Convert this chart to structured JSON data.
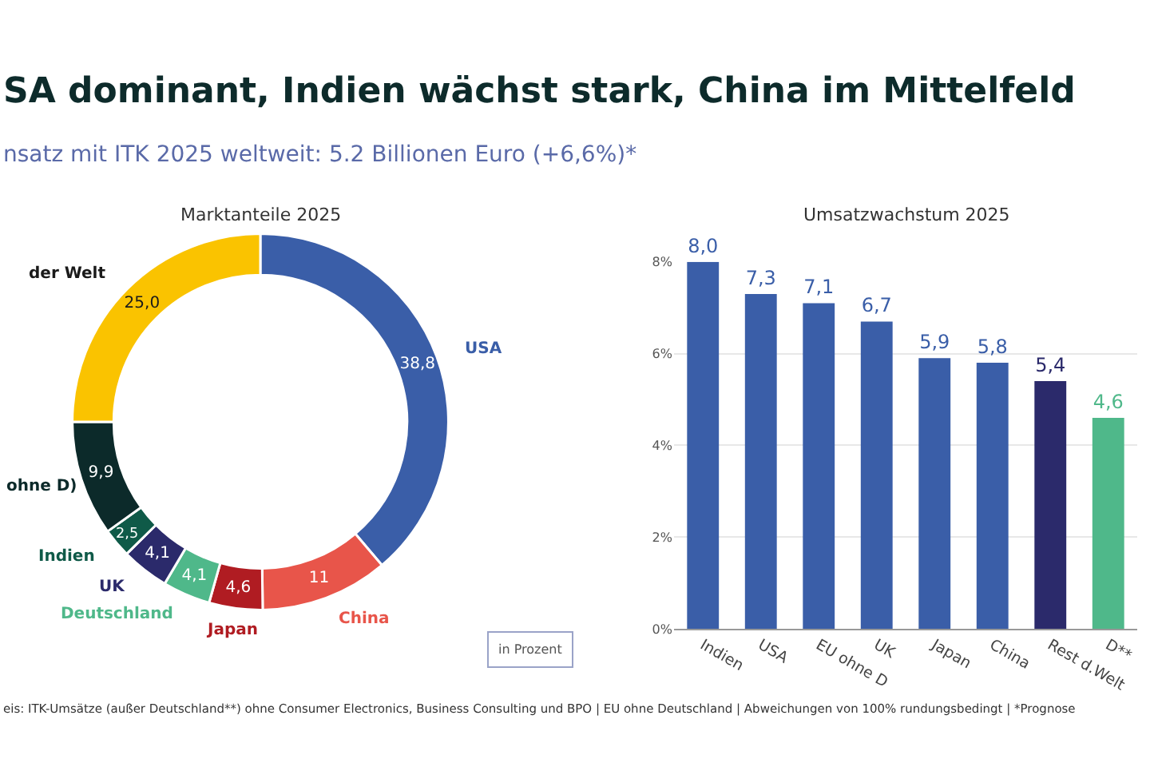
{
  "chart_data": [
    {
      "type": "other",
      "title": "SA dominant, Indien wächst stark, China im Mittelfeld",
      "subtitle": "nsatz mit ITK 2025 weltweit: 5.2 Billionen Euro (+6,6%)*",
      "annotations": [
        "eis: ITK-Umsätze (außer Deutschland**) ohne Consumer Electronics, Business Consulting und BPO | EU ohne Deutschland | Abweichungen von 100% rundungsbedingt | *Prognose"
      ]
    },
    {
      "type": "donut",
      "title": "Marktanteile 2025",
      "categories": [
        "USA",
        "China",
        "Japan",
        "Deutschland",
        "UK",
        "Indien",
        "ohne D)",
        "der Welt"
      ],
      "values": [
        38.8,
        11,
        4.6,
        4.1,
        4.1,
        2.5,
        9.9,
        25.0
      ],
      "value_labels": [
        "38,8",
        "11",
        "4,6",
        "4,1",
        "4,1",
        "2,5",
        "9,9",
        "25,0"
      ],
      "colors": [
        "#3a5ea8",
        "#e8554a",
        "#b01c22",
        "#4fb88a",
        "#2b2a6b",
        "#0f5a48",
        "#0c2a2a",
        "#fac300"
      ],
      "annotations": [
        "in Prozent"
      ]
    },
    {
      "type": "bar",
      "title": "Umsatzwachstum 2025",
      "categories": [
        "Indien",
        "USA",
        "EU ohne D",
        "UK",
        "Japan",
        "China",
        "Rest d.Welt",
        "D**"
      ],
      "values": [
        8.0,
        7.3,
        7.1,
        6.7,
        5.9,
        5.8,
        5.4,
        4.6
      ],
      "value_labels": [
        "8,0",
        "7,3",
        "7,1",
        "6,7",
        "5,9",
        "5,8",
        "5,4",
        "4,6"
      ],
      "colors": [
        "#3a5ea8",
        "#3a5ea8",
        "#3a5ea8",
        "#3a5ea8",
        "#3a5ea8",
        "#3a5ea8",
        "#2b2a6b",
        "#4fb88a"
      ],
      "ylim": [
        0,
        8
      ],
      "yticks": [
        {
          "value": 0,
          "label": "0%"
        },
        {
          "value": 2,
          "label": "2%"
        },
        {
          "value": 4,
          "label": "4%"
        },
        {
          "value": 6,
          "label": "6%"
        },
        {
          "value": 8,
          "label": "8%"
        }
      ],
      "grid": "y"
    }
  ]
}
